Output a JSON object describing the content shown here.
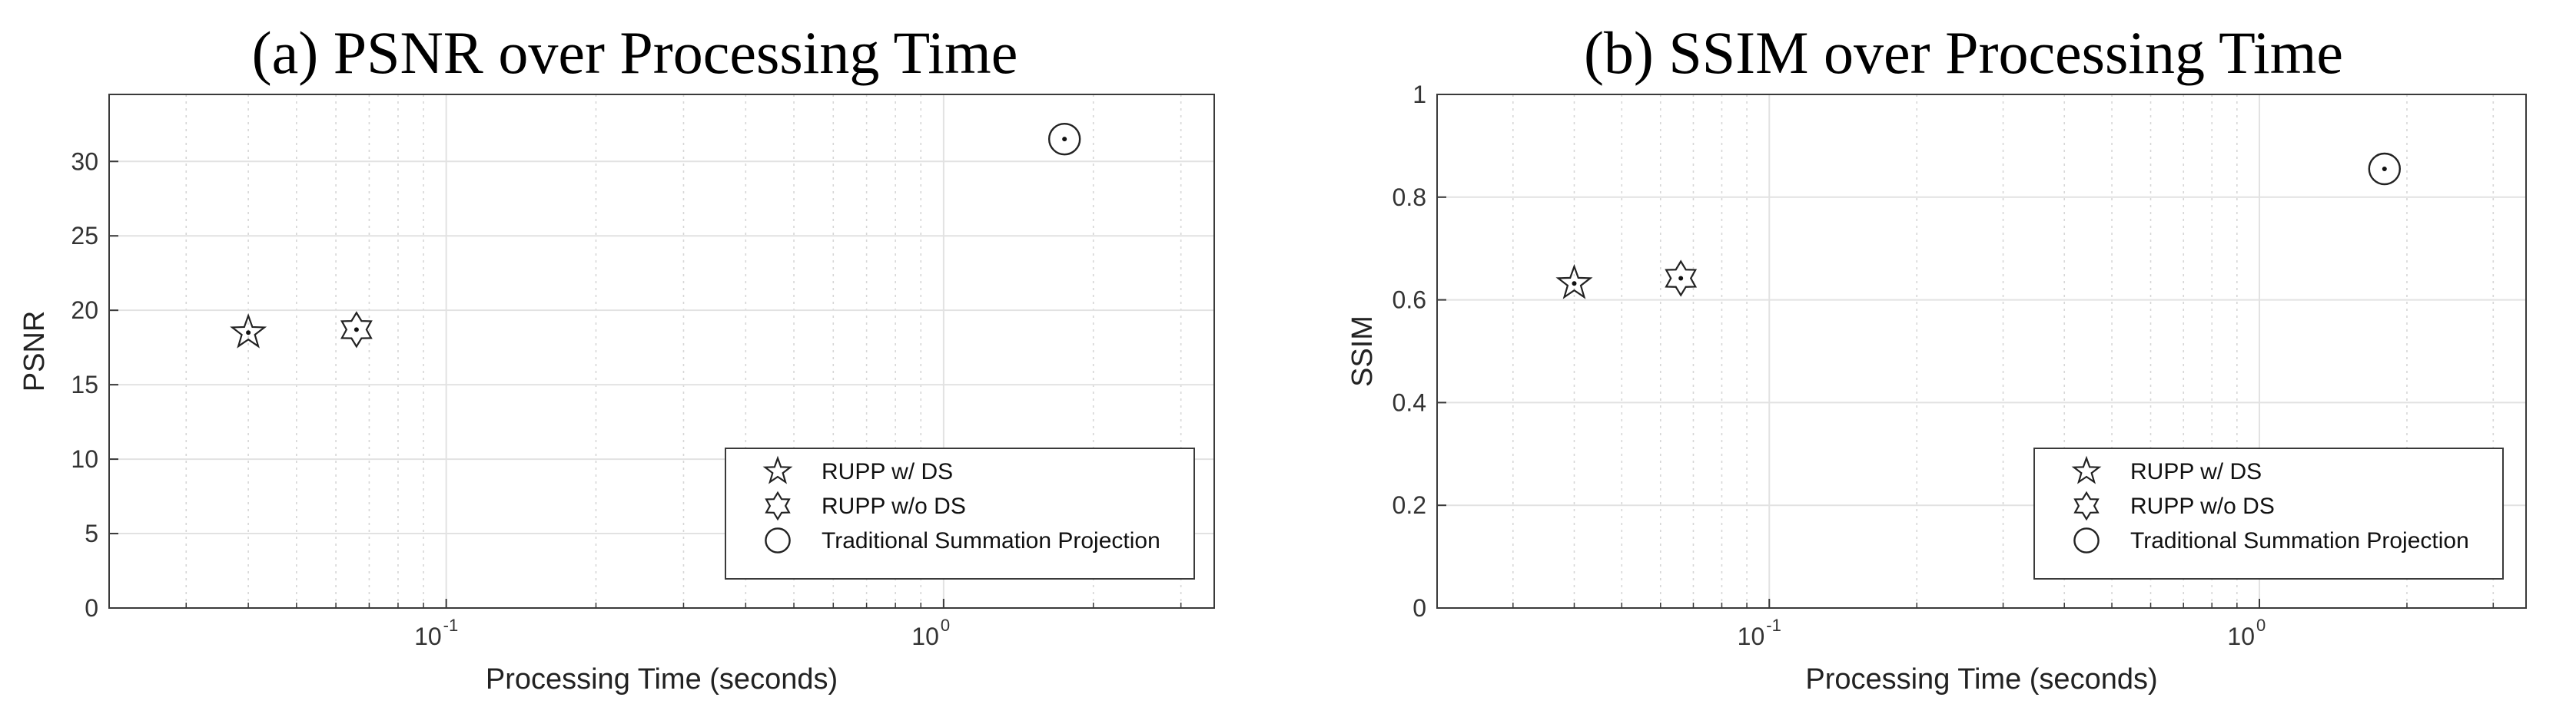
{
  "chart_data": [
    {
      "type": "scatter",
      "title": "(a) PSNR over Processing Time",
      "xlabel": "Processing Time (seconds)",
      "ylabel": "PSNR",
      "xscale": "log",
      "xlim": [
        0.021,
        3.5
      ],
      "ylim": [
        0,
        34.5
      ],
      "xticks": [
        {
          "base": "10",
          "exp": "-1"
        },
        {
          "base": "10",
          "exp": "0"
        }
      ],
      "yticks": [
        "0",
        "5",
        "10",
        "15",
        "20",
        "25",
        "30"
      ],
      "grid": true,
      "legend_position": "bottom-right",
      "series": [
        {
          "name": "RUPP w/ DS",
          "marker": "pentagram",
          "points": [
            {
              "x": 0.04,
              "y": 18.5
            }
          ]
        },
        {
          "name": "RUPP w/o DS",
          "marker": "hexagram",
          "points": [
            {
              "x": 0.066,
              "y": 18.7
            }
          ]
        },
        {
          "name": "Traditional Summation Projection",
          "marker": "circle",
          "points": [
            {
              "x": 1.75,
              "y": 31.5
            }
          ]
        }
      ]
    },
    {
      "type": "scatter",
      "title": "(b) SSIM over Processing Time",
      "xlabel": "Processing Time (seconds)",
      "ylabel": "SSIM",
      "xscale": "log",
      "xlim": [
        0.021,
        3.5
      ],
      "ylim": [
        0,
        1
      ],
      "xticks": [
        {
          "base": "10",
          "exp": "-1"
        },
        {
          "base": "10",
          "exp": "0"
        }
      ],
      "yticks": [
        "0",
        "0.2",
        "0.4",
        "0.6",
        "0.8",
        "1"
      ],
      "grid": true,
      "legend_position": "bottom-right",
      "series": [
        {
          "name": "RUPP w/ DS",
          "marker": "pentagram",
          "points": [
            {
              "x": 0.04,
              "y": 0.632
            }
          ]
        },
        {
          "name": "RUPP w/o DS",
          "marker": "hexagram",
          "points": [
            {
              "x": 0.066,
              "y": 0.642
            }
          ]
        },
        {
          "name": "Traditional Summation Projection",
          "marker": "circle",
          "points": [
            {
              "x": 1.8,
              "y": 0.855
            }
          ]
        }
      ]
    }
  ]
}
